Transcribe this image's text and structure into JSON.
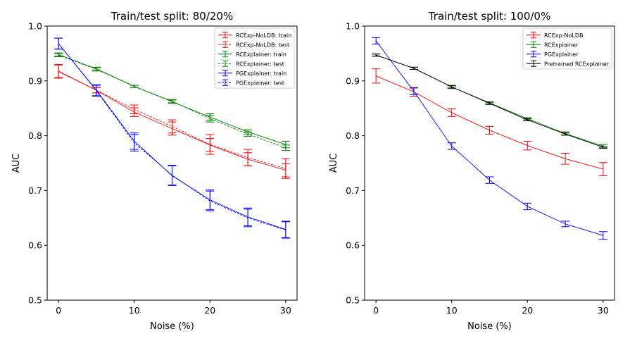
{
  "chart_data": [
    {
      "type": "line",
      "title": "Train/test split: 80/20%",
      "xlabel": "Noise (%)",
      "ylabel": "AUC",
      "xlim": [
        -1.5,
        31.5
      ],
      "ylim": [
        0.5,
        1.0
      ],
      "xticks": [
        0,
        10,
        20,
        30
      ],
      "yticks": [
        0.5,
        0.6,
        0.7,
        0.8,
        0.9,
        1.0
      ],
      "grid": false,
      "legend_position": "top-right",
      "x": [
        0,
        5,
        10,
        15,
        20,
        25,
        30
      ],
      "series": [
        {
          "name": "RCExp-NoLDB: train",
          "color": "#ff0000",
          "dashed": false,
          "values": [
            0.917,
            0.883,
            0.843,
            0.813,
            0.783,
            0.757,
            0.737
          ],
          "errors": [
            0.012,
            0.005,
            0.008,
            0.012,
            0.012,
            0.012,
            0.012
          ]
        },
        {
          "name": "RCExp-NoLDB: test",
          "color": "#ff0000",
          "dashed": true,
          "values": [
            0.918,
            0.883,
            0.848,
            0.817,
            0.784,
            0.76,
            0.74
          ],
          "errors": [
            0.012,
            0.005,
            0.008,
            0.012,
            0.018,
            0.015,
            0.018
          ]
        },
        {
          "name": "RCExplainer: train",
          "color": "#008000",
          "dashed": false,
          "values": [
            0.948,
            0.922,
            0.89,
            0.862,
            0.834,
            0.807,
            0.784
          ],
          "errors": [
            0.003,
            0.003,
            0.002,
            0.003,
            0.006,
            0.004,
            0.006
          ]
        },
        {
          "name": "RCExplainer: test",
          "color": "#008000",
          "dashed": true,
          "values": [
            0.947,
            0.921,
            0.89,
            0.863,
            0.831,
            0.803,
            0.778
          ],
          "errors": [
            0.003,
            0.003,
            0.002,
            0.003,
            0.006,
            0.004,
            0.005
          ]
        },
        {
          "name": "PGExplainer: train",
          "color": "#0000ff",
          "dashed": false,
          "values": [
            0.968,
            0.883,
            0.79,
            0.727,
            0.683,
            0.652,
            0.629
          ],
          "errors": [
            0.01,
            0.01,
            0.015,
            0.018,
            0.018,
            0.016,
            0.015
          ]
        },
        {
          "name": "PGExplainer: test",
          "color": "#0000ff",
          "dashed": true,
          "values": [
            0.968,
            0.882,
            0.787,
            0.728,
            0.681,
            0.65,
            0.628
          ],
          "errors": [
            0.01,
            0.01,
            0.015,
            0.018,
            0.018,
            0.016,
            0.015
          ]
        }
      ]
    },
    {
      "type": "line",
      "title": "Train/test split: 100/0%",
      "xlabel": "Noise (%)",
      "ylabel": "AUC",
      "xlim": [
        -1.5,
        31.5
      ],
      "ylim": [
        0.5,
        1.0
      ],
      "xticks": [
        0,
        10,
        20,
        30
      ],
      "yticks": [
        0.5,
        0.6,
        0.7,
        0.8,
        0.9,
        1.0
      ],
      "grid": false,
      "legend_position": "top-right",
      "x": [
        0,
        5,
        10,
        15,
        20,
        25,
        30
      ],
      "series": [
        {
          "name": "RCExp-NoLDB",
          "color": "#ff0000",
          "dashed": false,
          "values": [
            0.909,
            0.88,
            0.842,
            0.81,
            0.782,
            0.758,
            0.739
          ],
          "errors": [
            0.013,
            0.008,
            0.007,
            0.007,
            0.008,
            0.01,
            0.012
          ]
        },
        {
          "name": "RCExplainer",
          "color": "#008000",
          "dashed": false,
          "values": [
            0.947,
            0.923,
            0.889,
            0.86,
            0.831,
            0.804,
            0.781
          ],
          "errors": [
            0.002,
            0.002,
            0.003,
            0.002,
            0.002,
            0.003,
            0.003
          ]
        },
        {
          "name": "PGExplainer",
          "color": "#0000ff",
          "dashed": false,
          "values": [
            0.973,
            0.881,
            0.781,
            0.719,
            0.671,
            0.639,
            0.618
          ],
          "errors": [
            0.006,
            0.006,
            0.006,
            0.006,
            0.006,
            0.005,
            0.007
          ]
        },
        {
          "name": "Pretrained RCExplainer",
          "color": "#000000",
          "dashed": false,
          "values": [
            0.947,
            0.923,
            0.889,
            0.859,
            0.829,
            0.803,
            0.779
          ],
          "errors": [
            0.002,
            0.002,
            0.002,
            0.002,
            0.002,
            0.002,
            0.002
          ]
        }
      ]
    }
  ]
}
